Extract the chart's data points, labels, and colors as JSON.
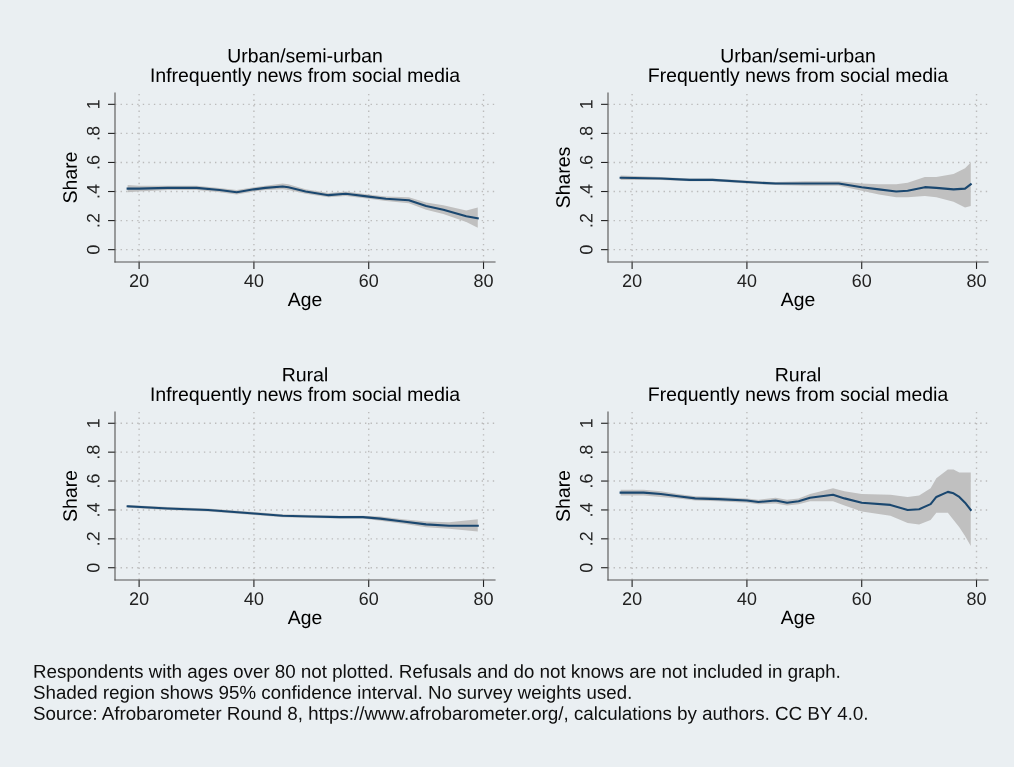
{
  "chart_data": [
    {
      "type": "line",
      "title": "Urban/semi-urban",
      "subtitle": "Infrequently news from social media",
      "xlabel": "Age",
      "ylabel": "Share",
      "xlim": [
        15.8,
        82
      ],
      "xticks": [
        20,
        40,
        60,
        80
      ],
      "ylim": [
        -0.085,
        1.078
      ],
      "yticks": [
        0,
        {
          "value": 0.2,
          "label": ".2"
        },
        {
          "value": 0.4,
          "label": ".4"
        },
        {
          "value": 0.6,
          "label": ".6"
        },
        {
          "value": 0.8,
          "label": ".8"
        },
        1
      ],
      "grid": true,
      "line_style": "solid",
      "x": [
        18,
        20,
        25,
        30,
        34,
        37,
        40,
        42,
        45,
        46,
        49,
        53,
        56,
        60,
        63,
        67,
        70,
        73,
        77,
        79
      ],
      "series": [
        {
          "color": "#1a476f",
          "values": [
            0.42,
            0.42,
            0.425,
            0.425,
            0.41,
            0.395,
            0.415,
            0.425,
            0.435,
            0.43,
            0.4,
            0.375,
            0.385,
            0.365,
            0.35,
            0.34,
            0.3,
            0.275,
            0.23,
            0.215
          ],
          "lower": [
            0.395,
            0.4,
            0.41,
            0.41,
            0.395,
            0.38,
            0.4,
            0.41,
            0.415,
            0.41,
            0.385,
            0.36,
            0.37,
            0.35,
            0.335,
            0.32,
            0.275,
            0.245,
            0.19,
            0.15
          ],
          "upper": [
            0.445,
            0.44,
            0.44,
            0.44,
            0.425,
            0.41,
            0.43,
            0.44,
            0.455,
            0.45,
            0.415,
            0.39,
            0.4,
            0.38,
            0.365,
            0.36,
            0.325,
            0.305,
            0.27,
            0.29
          ]
        }
      ],
      "annotations": [
        "Respondents with ages over 80 not plotted. Refusals and do not knows are not included in graph.",
        "Shaded region shows 95% confidence interval. No survey weights used.",
        "Source: Afrobarometer Round 8, https://www.afrobarometer.org/, calculations by authors. CC BY 4.0."
      ]
    },
    {
      "type": "line",
      "title": "Urban/semi-urban",
      "subtitle": "Frequently news from social media",
      "xlabel": "Age",
      "ylabel": "Shares",
      "xlim": [
        15.8,
        82
      ],
      "xticks": [
        20,
        40,
        60,
        80
      ],
      "ylim": [
        -0.085,
        1.078
      ],
      "yticks": [
        0,
        {
          "value": 0.2,
          "label": ".2"
        },
        {
          "value": 0.4,
          "label": ".4"
        },
        {
          "value": 0.6,
          "label": ".6"
        },
        {
          "value": 0.8,
          "label": ".8"
        },
        1
      ],
      "grid": true,
      "line_style": "solid",
      "x": [
        18,
        25,
        30,
        34,
        40,
        45,
        50,
        56,
        60,
        63,
        66,
        68,
        71,
        73,
        76,
        78,
        79
      ],
      "series": [
        {
          "color": "#1a476f",
          "values": [
            0.495,
            0.49,
            0.48,
            0.48,
            0.465,
            0.455,
            0.455,
            0.455,
            0.43,
            0.415,
            0.4,
            0.405,
            0.43,
            0.425,
            0.415,
            0.42,
            0.45
          ],
          "lower": [
            0.48,
            0.48,
            0.47,
            0.47,
            0.455,
            0.445,
            0.44,
            0.44,
            0.405,
            0.38,
            0.36,
            0.36,
            0.37,
            0.36,
            0.33,
            0.29,
            0.3
          ],
          "upper": [
            0.51,
            0.5,
            0.49,
            0.49,
            0.475,
            0.465,
            0.47,
            0.47,
            0.455,
            0.45,
            0.45,
            0.46,
            0.5,
            0.5,
            0.52,
            0.56,
            0.6
          ]
        }
      ]
    },
    {
      "type": "line",
      "title": "Rural",
      "subtitle": "Infrequently news from social media",
      "xlabel": "Age",
      "ylabel": "Share",
      "xlim": [
        15.8,
        82
      ],
      "xticks": [
        20,
        40,
        60,
        80
      ],
      "ylim": [
        -0.085,
        1.078
      ],
      "yticks": [
        0,
        {
          "value": 0.2,
          "label": ".2"
        },
        {
          "value": 0.4,
          "label": ".4"
        },
        {
          "value": 0.6,
          "label": ".6"
        },
        {
          "value": 0.8,
          "label": ".8"
        },
        1
      ],
      "grid": true,
      "line_style": "solid",
      "x": [
        18,
        25,
        32,
        40,
        45,
        50,
        55,
        59,
        62,
        66,
        70,
        74,
        79
      ],
      "series": [
        {
          "color": "#1a476f",
          "values": [
            0.425,
            0.41,
            0.4,
            0.375,
            0.36,
            0.355,
            0.35,
            0.35,
            0.34,
            0.32,
            0.3,
            0.29,
            0.29
          ],
          "lower": [
            0.415,
            0.4,
            0.39,
            0.365,
            0.35,
            0.345,
            0.34,
            0.34,
            0.325,
            0.305,
            0.28,
            0.27,
            0.25
          ],
          "upper": [
            0.435,
            0.42,
            0.41,
            0.385,
            0.37,
            0.365,
            0.36,
            0.36,
            0.355,
            0.335,
            0.32,
            0.315,
            0.335
          ]
        }
      ]
    },
    {
      "type": "line",
      "title": "Rural",
      "subtitle": "Frequently news from social media",
      "xlabel": "Age",
      "ylabel": "Share",
      "xlim": [
        15.8,
        82
      ],
      "xticks": [
        20,
        40,
        60,
        80
      ],
      "ylim": [
        -0.085,
        1.078
      ],
      "yticks": [
        0,
        {
          "value": 0.2,
          "label": ".2"
        },
        {
          "value": 0.4,
          "label": ".4"
        },
        {
          "value": 0.6,
          "label": ".6"
        },
        {
          "value": 0.8,
          "label": ".8"
        },
        1
      ],
      "grid": true,
      "line_style": "solid",
      "x": [
        18,
        22,
        25,
        28,
        31,
        35,
        40,
        42,
        45,
        47,
        49,
        51,
        55,
        57,
        60,
        65,
        68,
        70,
        72,
        73,
        75,
        76,
        77,
        78,
        79
      ],
      "series": [
        {
          "color": "#1a476f",
          "values": [
            0.52,
            0.52,
            0.51,
            0.495,
            0.48,
            0.475,
            0.465,
            0.455,
            0.465,
            0.45,
            0.46,
            0.485,
            0.505,
            0.48,
            0.45,
            0.435,
            0.4,
            0.405,
            0.44,
            0.49,
            0.525,
            0.515,
            0.49,
            0.45,
            0.4
          ],
          "lower": [
            0.5,
            0.5,
            0.49,
            0.48,
            0.465,
            0.46,
            0.45,
            0.44,
            0.445,
            0.43,
            0.44,
            0.46,
            0.46,
            0.43,
            0.39,
            0.36,
            0.31,
            0.3,
            0.33,
            0.38,
            0.38,
            0.33,
            0.28,
            0.22,
            0.15
          ],
          "upper": [
            0.54,
            0.54,
            0.53,
            0.51,
            0.495,
            0.49,
            0.48,
            0.47,
            0.485,
            0.47,
            0.48,
            0.51,
            0.55,
            0.53,
            0.51,
            0.505,
            0.49,
            0.5,
            0.55,
            0.62,
            0.68,
            0.68,
            0.66,
            0.66,
            0.66
          ]
        }
      ]
    }
  ]
}
